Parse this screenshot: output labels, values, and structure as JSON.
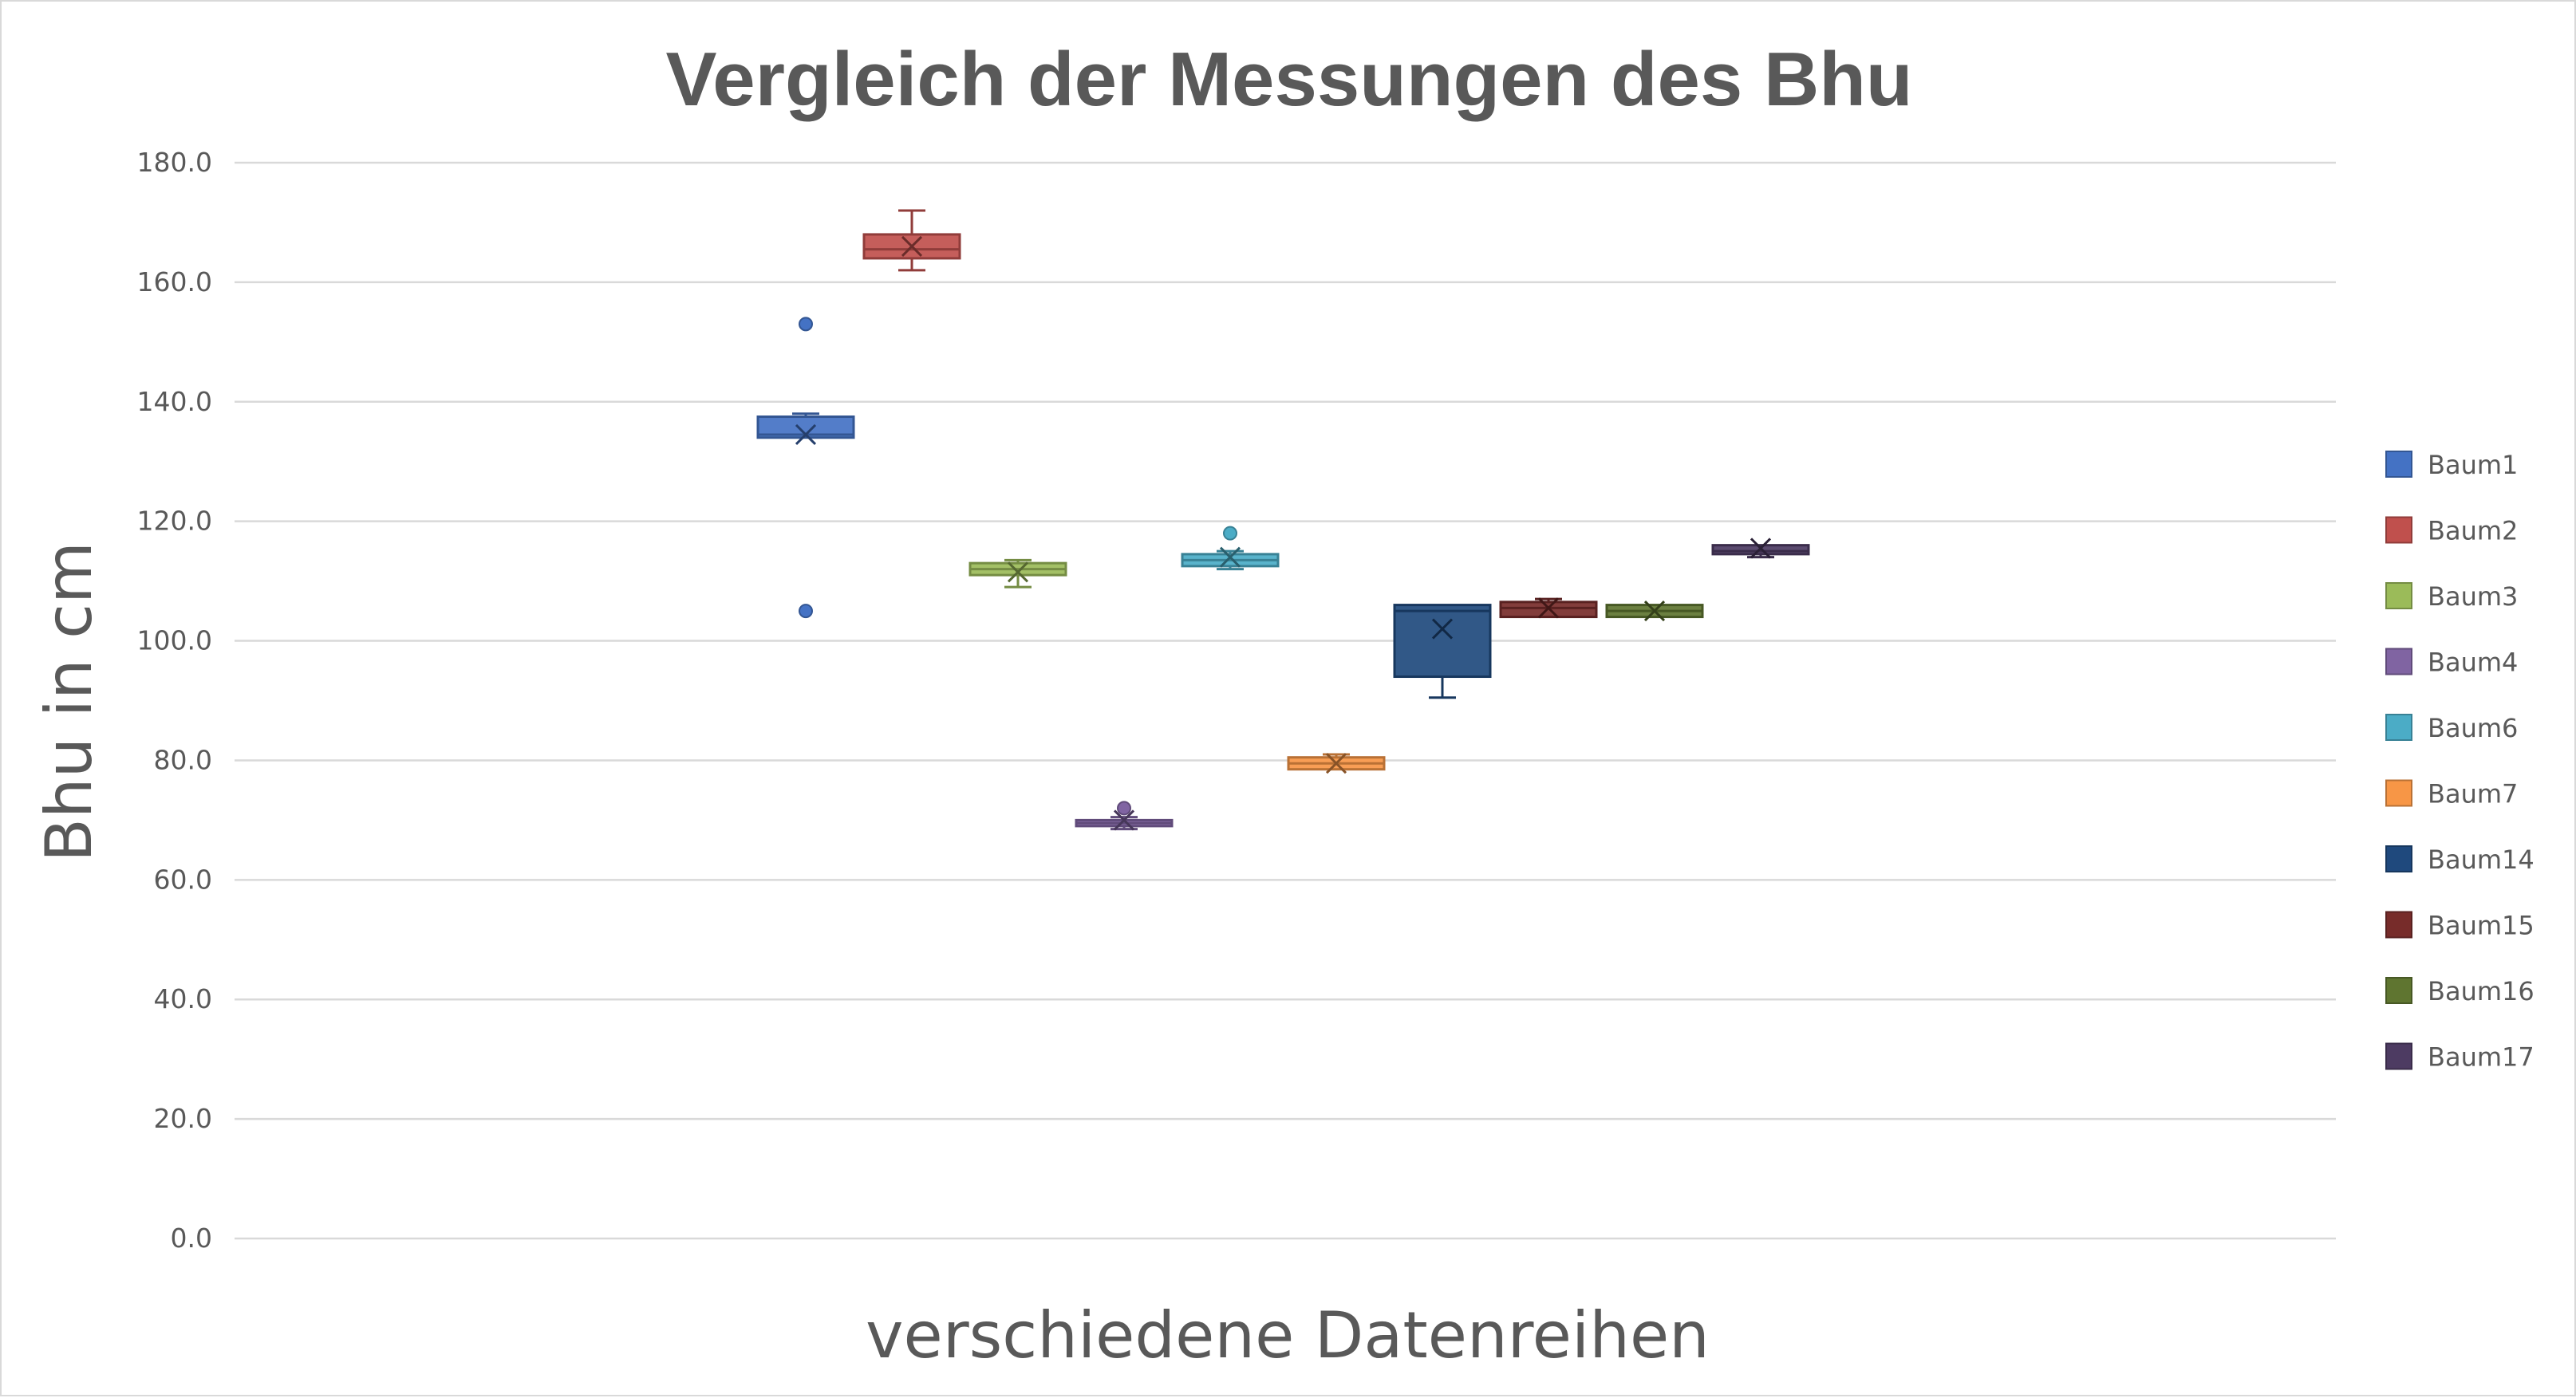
{
  "chart_data": {
    "type": "boxplot",
    "title": "Vergleich der Messungen des Bhu",
    "xlabel": "verschiedene Datenreihen",
    "ylabel": "Bhu in cm",
    "ylim": [
      0,
      180
    ],
    "yticks": [
      "0.0",
      "20.0",
      "40.0",
      "60.0",
      "80.0",
      "100.0",
      "120.0",
      "140.0",
      "160.0",
      "180.0"
    ],
    "grid": true,
    "legend_position": "right",
    "series": [
      {
        "name": "Baum1",
        "color": "#4472C4",
        "min": 134,
        "q1": 134,
        "median": 134.5,
        "q3": 137.5,
        "max": 138,
        "mean": 134.5,
        "outliers": [
          153,
          105
        ]
      },
      {
        "name": "Baum2",
        "color": "#C0504D",
        "min": 162,
        "q1": 164,
        "median": 165.5,
        "q3": 168,
        "max": 172,
        "mean": 166,
        "outliers": []
      },
      {
        "name": "Baum3",
        "color": "#9BBB59",
        "min": 109,
        "q1": 111,
        "median": 112,
        "q3": 113,
        "max": 113.5,
        "mean": 111.5,
        "outliers": []
      },
      {
        "name": "Baum4",
        "color": "#8064A2",
        "min": 68.5,
        "q1": 69,
        "median": 69.5,
        "q3": 70,
        "max": 70.5,
        "mean": 70,
        "outliers": [
          72
        ]
      },
      {
        "name": "Baum6",
        "color": "#4BACC6",
        "min": 112,
        "q1": 112.5,
        "median": 113.5,
        "q3": 114.5,
        "max": 115,
        "mean": 114,
        "outliers": [
          118
        ]
      },
      {
        "name": "Baum7",
        "color": "#F79646",
        "min": 78.5,
        "q1": 78.5,
        "median": 79.5,
        "q3": 80.5,
        "max": 81,
        "mean": 79.5,
        "outliers": []
      },
      {
        "name": "Baum14",
        "color": "#1F497D",
        "min": 90.5,
        "q1": 94,
        "median": 105,
        "q3": 106,
        "max": 106,
        "mean": 102,
        "outliers": []
      },
      {
        "name": "Baum15",
        "color": "#772C2A",
        "min": 104,
        "q1": 104,
        "median": 105.5,
        "q3": 106.5,
        "max": 107,
        "mean": 105.5,
        "outliers": []
      },
      {
        "name": "Baum16",
        "color": "#5F7530",
        "min": 104,
        "q1": 104,
        "median": 105,
        "q3": 106,
        "max": 106,
        "mean": 105,
        "outliers": []
      },
      {
        "name": "Baum17",
        "color": "#4D3B62",
        "min": 114,
        "q1": 114.5,
        "median": 115,
        "q3": 116,
        "max": 116,
        "mean": 115.5,
        "outliers": []
      }
    ]
  }
}
